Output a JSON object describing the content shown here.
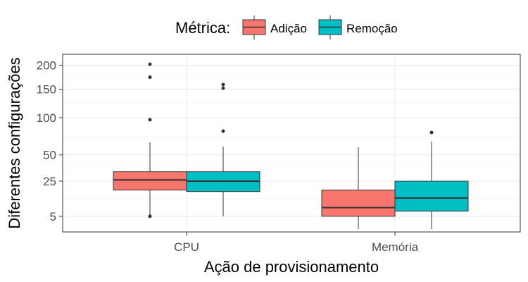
{
  "chart_data": {
    "type": "box",
    "legend": {
      "title": "Métrica:",
      "placement": "top"
    },
    "xlabel": "Ação de provisionamento",
    "ylabel": "Diferentes configurações",
    "y_scale": "sqrt",
    "ylim": [
      1,
      225
    ],
    "y_ticks": [
      5,
      25,
      50,
      100,
      150,
      200
    ],
    "grid": true,
    "categories": [
      "CPU",
      "Memória"
    ],
    "series": [
      {
        "name": "Adição",
        "color": "#F8766D",
        "boxes": [
          {
            "category": "CPU",
            "min": 5.5,
            "q1": 18.5,
            "median": 26,
            "q3": 33,
            "max": 65,
            "outliers": [
              5.0,
              97,
              174,
              202
            ]
          },
          {
            "category": "Memória",
            "min": 1.5,
            "q1": 5.0,
            "median": 8.5,
            "q3": 18.5,
            "max": 59,
            "outliers": []
          }
        ]
      },
      {
        "name": "Remoção",
        "color": "#00BFC4",
        "boxes": [
          {
            "category": "CPU",
            "min": 5.0,
            "q1": 17.5,
            "median": 25,
            "q3": 33,
            "max": 60,
            "outliers": [
              80,
              152,
              159
            ]
          },
          {
            "category": "Memória",
            "min": 1.5,
            "q1": 7.0,
            "median": 13.5,
            "q3": 25,
            "max": 66,
            "outliers": [
              78
            ]
          }
        ]
      }
    ]
  }
}
